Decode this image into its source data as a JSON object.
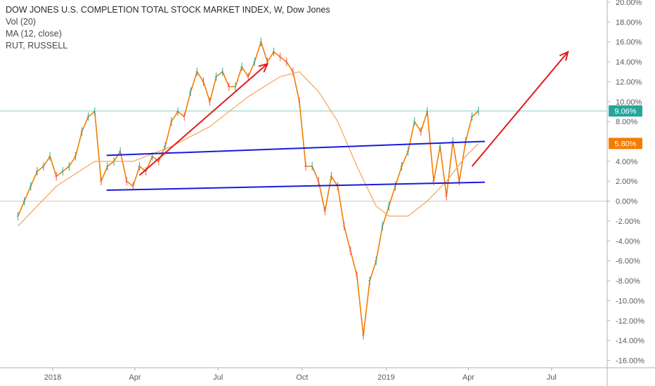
{
  "legend": {
    "title": "DOW JONES U.S. COMPLETION TOTAL STOCK MARKET INDEX, W, Dow Jones",
    "vol": "Vol (20)",
    "ma": "MA (12, close)",
    "compare": "RUT, RUSSELL"
  },
  "chart_data": {
    "type": "line",
    "x_ticks": [
      "2018",
      "Apr",
      "Jul",
      "Oct",
      "2019",
      "Apr",
      "Jul"
    ],
    "y_ticks": [
      "20.00%",
      "18.00%",
      "16.00%",
      "14.00%",
      "12.00%",
      "10.00%",
      "8.00%",
      "4.00%",
      "2.00%",
      "0.00%",
      "-2.00%",
      "-4.00%",
      "-6.00%",
      "-8.00%",
      "-10.00%",
      "-12.00%",
      "-14.00%",
      "-16.00%"
    ],
    "ylim": [
      -16.5,
      20.3
    ],
    "y_unit": "%",
    "grid": false,
    "badges": [
      {
        "label": "9.06%",
        "value": 9.06,
        "color": "#26a69a"
      },
      {
        "label": "5.80%",
        "value": 5.8,
        "color": "#f57c00"
      }
    ],
    "series": [
      {
        "color": "#f57c00",
        "x": [
          "2017-11-24",
          "2017-12-01",
          "2017-12-08",
          "2017-12-15",
          "2017-12-22",
          "2017-12-29",
          "2018-01-05",
          "2018-01-12",
          "2018-01-19",
          "2018-01-26",
          "2018-02-02",
          "2018-02-09",
          "2018-02-16",
          "2018-02-23",
          "2018-03-02",
          "2018-03-09",
          "2018-03-16",
          "2018-03-23",
          "2018-03-30",
          "2018-04-06",
          "2018-04-13",
          "2018-04-20",
          "2018-04-27",
          "2018-05-04",
          "2018-05-11",
          "2018-05-18",
          "2018-05-25",
          "2018-06-01",
          "2018-06-08",
          "2018-06-15",
          "2018-06-22",
          "2018-06-29",
          "2018-07-06",
          "2018-07-13",
          "2018-07-20",
          "2018-07-27",
          "2018-08-03",
          "2018-08-10",
          "2018-08-17",
          "2018-08-24",
          "2018-08-31",
          "2018-09-07",
          "2018-09-14",
          "2018-09-21",
          "2018-09-28",
          "2018-10-05",
          "2018-10-12",
          "2018-10-19",
          "2018-10-26",
          "2018-11-02",
          "2018-11-09",
          "2018-11-16",
          "2018-11-23",
          "2018-11-30",
          "2018-12-07",
          "2018-12-14",
          "2018-12-21",
          "2018-12-28",
          "2019-01-04",
          "2019-01-11",
          "2019-01-18",
          "2019-01-25",
          "2019-02-01",
          "2019-02-08",
          "2019-02-15",
          "2019-02-22",
          "2019-03-01",
          "2019-03-08",
          "2019-03-15",
          "2019-03-22",
          "2019-03-29",
          "2019-04-05",
          "2019-04-12"
        ],
        "values": [
          -1.5,
          0.0,
          1.5,
          3.0,
          3.5,
          4.5,
          2.5,
          3.0,
          3.5,
          4.5,
          7.0,
          8.5,
          9.0,
          2.0,
          3.5,
          4.0,
          5.0,
          2.0,
          1.5,
          3.5,
          3.0,
          4.5,
          4.0,
          5.5,
          8.0,
          9.0,
          8.5,
          11.0,
          13.0,
          12.0,
          10.0,
          12.5,
          13.0,
          11.5,
          11.5,
          13.5,
          12.5,
          14.0,
          16.0,
          14.0,
          15.0,
          14.5,
          14.0,
          13.0,
          10.0,
          3.5,
          3.5,
          2.0,
          -1.0,
          2.5,
          1.5,
          -2.5,
          -5.0,
          -7.5,
          -13.5,
          -8.0,
          -6.0,
          -2.5,
          -0.5,
          1.5,
          3.5,
          5.0,
          8.0,
          7.0,
          9.0,
          2.0,
          5.5,
          0.5,
          6.0,
          2.0,
          6.0,
          8.5,
          9.06
        ]
      },
      {
        "color": "#f5a35a",
        "x": [
          "2017-11-24",
          "2018-01-05",
          "2018-02-16",
          "2018-03-30",
          "2018-05-11",
          "2018-06-22",
          "2018-08-03",
          "2018-09-07",
          "2018-09-28",
          "2018-10-19",
          "2018-11-09",
          "2018-11-30",
          "2018-12-21",
          "2019-01-04",
          "2019-01-25",
          "2019-02-15",
          "2019-03-08",
          "2019-03-29",
          "2019-04-12"
        ],
        "values": [
          -2.5,
          1.5,
          4.0,
          4.0,
          5.5,
          7.5,
          10.5,
          12.5,
          13.0,
          11.0,
          8.0,
          3.5,
          -0.5,
          -1.5,
          -1.5,
          0.0,
          2.0,
          4.5,
          5.8
        ]
      }
    ],
    "annotations": {
      "trend_lines": [
        {
          "color": "#1a1adc",
          "from": {
            "x": "2018-03-01",
            "y": 4.6
          },
          "to": {
            "x": "2019-04-19",
            "y": 6.0
          }
        },
        {
          "color": "#1a1adc",
          "from": {
            "x": "2018-03-01",
            "y": 1.1
          },
          "to": {
            "x": "2019-04-19",
            "y": 1.9
          }
        }
      ],
      "arrows": [
        {
          "color": "#e21b1b",
          "from": {
            "x": "2018-04-06",
            "y": 2.6
          },
          "to": {
            "x": "2018-08-24",
            "y": 13.8
          }
        },
        {
          "color": "#e21b1b",
          "from": {
            "x": "2019-04-05",
            "y": 3.5
          },
          "to": {
            "x": "2019-07-19",
            "y": 15.0
          }
        }
      ]
    }
  }
}
